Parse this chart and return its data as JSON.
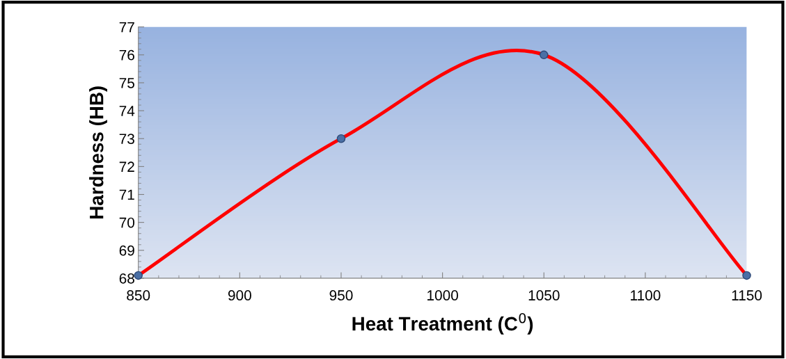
{
  "chart_data": {
    "type": "line",
    "xlabel": "Heat Treatment (C$^{0}$)",
    "ylabel": "Hardness (HB)",
    "x": [
      850,
      950,
      1050,
      1150
    ],
    "series": [
      {
        "color": "#ff0000",
        "values": [
          68.1,
          73,
          76,
          68.1
        ]
      }
    ],
    "marker": "circle",
    "line_style": "solid",
    "grid": false,
    "legend": false,
    "xlim": [
      850,
      1150
    ],
    "ylim": [
      68,
      77
    ],
    "xticks": [
      850,
      900,
      950,
      1000,
      1050,
      1100,
      1150
    ],
    "yticks": [
      68,
      69,
      70,
      71,
      72,
      73,
      74,
      75,
      76,
      77
    ]
  }
}
